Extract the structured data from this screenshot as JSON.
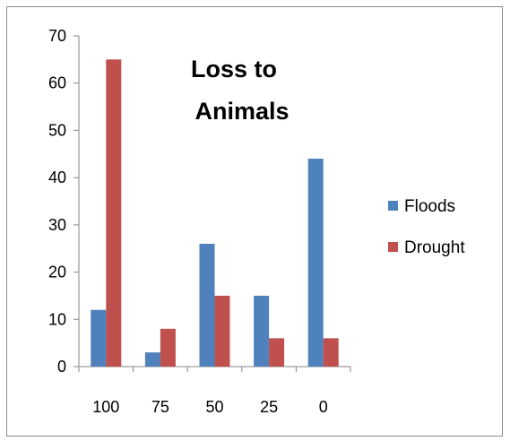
{
  "chart_data": {
    "type": "bar",
    "title_lines": [
      "Loss to",
      "Animals"
    ],
    "categories": [
      "100",
      "75",
      "50",
      "25",
      "0"
    ],
    "series": [
      {
        "name": "Floods",
        "color": "#4F81BD",
        "values": [
          12,
          3,
          26,
          15,
          44
        ]
      },
      {
        "name": "Drought",
        "color": "#C0504D",
        "values": [
          65,
          8,
          15,
          6,
          6
        ]
      }
    ],
    "ylim": [
      0,
      70
    ],
    "yticks": [
      0,
      10,
      20,
      30,
      40,
      50,
      60,
      70
    ],
    "grid": false,
    "legend_position": "right"
  }
}
